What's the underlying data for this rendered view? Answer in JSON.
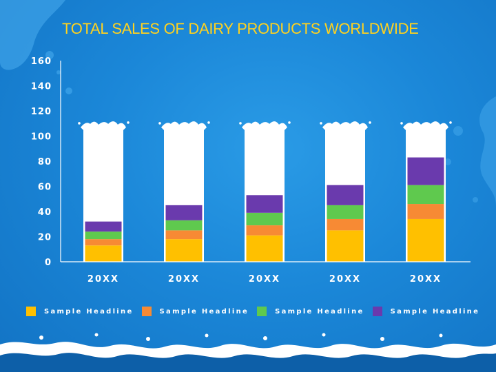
{
  "slide": {
    "title": "TOTAL SALES OF DAIRY PRODUCTS WORLDWIDE"
  },
  "colors": {
    "background": "#1b87d8",
    "title": "#ffd21e",
    "bottle": "#ffffff",
    "splash_dark": "#0d5fa8",
    "splash_light": "#ffffff"
  },
  "chart_data": {
    "type": "bar",
    "stacked": true,
    "title": "TOTAL SALES OF DAIRY PRODUCTS WORLDWIDE",
    "xlabel": "",
    "ylabel": "",
    "ylim": [
      0,
      160
    ],
    "yticks": [
      0,
      20,
      40,
      60,
      80,
      100,
      120,
      140,
      160
    ],
    "grid": false,
    "legend_position": "bottom",
    "categories": [
      "20XX",
      "20XX",
      "20XX",
      "20XX",
      "20XX"
    ],
    "background_bottle_value": 108,
    "series": [
      {
        "name": "Sample Headline",
        "color": "#ffc000",
        "values": [
          13,
          18,
          21,
          25,
          34
        ]
      },
      {
        "name": "Sample Headline",
        "color": "#f78a34",
        "values": [
          5,
          7,
          8,
          9,
          12
        ]
      },
      {
        "name": "Sample Headline",
        "color": "#5fc94e",
        "values": [
          6,
          8,
          10,
          11,
          15
        ]
      },
      {
        "name": "Sample Headline",
        "color": "#6a3aad",
        "values": [
          8,
          12,
          14,
          16,
          22
        ]
      }
    ]
  }
}
